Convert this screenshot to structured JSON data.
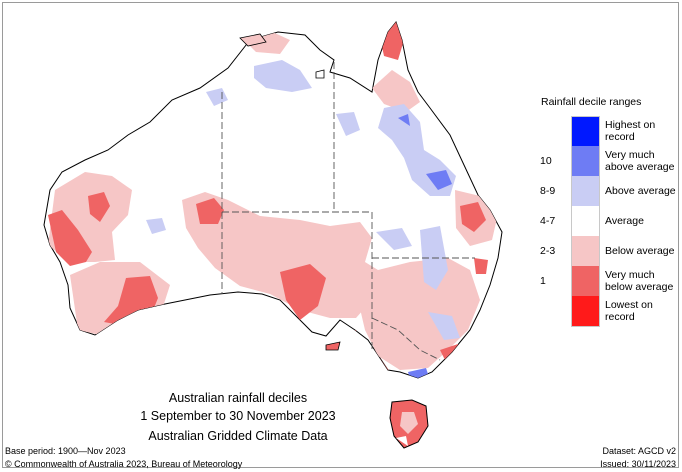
{
  "legend": {
    "title": "Rainfall decile ranges",
    "entries": [
      {
        "code": "",
        "label1": "Highest on",
        "label2": "record",
        "color": "#0018ff"
      },
      {
        "code": "10",
        "label1": "Very much",
        "label2": "above average",
        "color": "#6e7cf4"
      },
      {
        "code": "8-9",
        "label1": "Above average",
        "label2": "",
        "color": "#c9cdf4"
      },
      {
        "code": "4-7",
        "label1": "Average",
        "label2": "",
        "color": "#ffffff"
      },
      {
        "code": "2-3",
        "label1": "Below average",
        "label2": "",
        "color": "#f6c6c6"
      },
      {
        "code": "1",
        "label1": "Very much",
        "label2": "below average",
        "color": "#ef6464"
      },
      {
        "code": "",
        "label1": "Lowest on",
        "label2": "record",
        "color": "#ff1a1a"
      }
    ]
  },
  "caption": {
    "line1": "Australian rainfall deciles",
    "line2": "1 September to 30 November 2023",
    "line3": "Australian Gridded Climate Data"
  },
  "footer": {
    "base_period": "Base period: 1900—Nov 2023",
    "dataset": "Dataset: AGCD v2",
    "copyright": "© Commonwealth of Australia 2023, Bureau of Meteorology",
    "issued": "Issued: 30/11/2023"
  }
}
